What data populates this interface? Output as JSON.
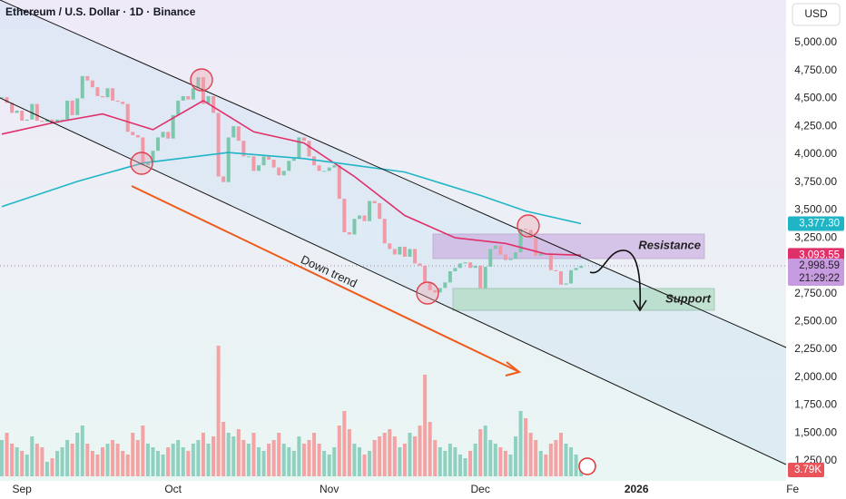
{
  "chart_data": {
    "type": "candlestick",
    "title": "Ethereum / U.S. Dollar · 1D · Binance",
    "currency": "USD",
    "up_color": "#7cc8ad",
    "down_color": "#f09aa8",
    "volume_up_color": "#8fd0c0",
    "volume_down_color": "#f3a3a3",
    "xlim": [
      -0.36,
      155.7
    ],
    "xticks": [
      {
        "value": 4,
        "label": "Sep"
      },
      {
        "value": 34,
        "label": "Oct"
      },
      {
        "value": 65,
        "label": "Nov"
      },
      {
        "value": 95,
        "label": "Dec"
      },
      {
        "value": 126,
        "label": "2026"
      },
      {
        "value": 157,
        "label": "Fe"
      }
    ],
    "ylim": [
      1071,
      5382
    ],
    "yticks": [
      {
        "value": 5000,
        "label": "5,000.00"
      },
      {
        "value": 4750,
        "label": "4,750.00"
      },
      {
        "value": 4500,
        "label": "4,500.00"
      },
      {
        "value": 4250,
        "label": "4,250.00"
      },
      {
        "value": 4000,
        "label": "4,000.00"
      },
      {
        "value": 3750,
        "label": "3,750.00"
      },
      {
        "value": 3500,
        "label": "3,500.00"
      },
      {
        "value": 3250,
        "label": "3,250.00"
      },
      {
        "value": 2750,
        "label": "2,750.00"
      },
      {
        "value": 2500,
        "label": "2,500.00"
      },
      {
        "value": 2250,
        "label": "2,250.00"
      },
      {
        "value": 2000,
        "label": "2,000.00"
      },
      {
        "value": 1750,
        "label": "1,750.00"
      },
      {
        "value": 1500,
        "label": "1,500.00"
      },
      {
        "value": 1250,
        "label": "1,250.00"
      }
    ],
    "x": [
      0,
      1,
      2,
      3,
      4,
      5,
      6,
      7,
      8,
      9,
      10,
      11,
      12,
      13,
      14,
      15,
      16,
      17,
      18,
      19,
      20,
      21,
      22,
      23,
      24,
      25,
      26,
      27,
      28,
      29,
      30,
      31,
      32,
      33,
      34,
      35,
      36,
      37,
      38,
      39,
      40,
      41,
      42,
      43,
      44,
      45,
      46,
      47,
      48,
      49,
      50,
      51,
      52,
      53,
      54,
      55,
      56,
      57,
      58,
      59,
      60,
      61,
      62,
      63,
      64,
      65,
      66,
      67,
      68,
      69,
      70,
      71,
      72,
      73,
      74,
      75,
      76,
      77,
      78,
      79,
      80,
      81,
      82,
      83,
      84,
      85,
      86,
      87,
      88,
      89,
      90,
      91,
      92,
      93,
      94,
      95,
      96,
      97,
      98,
      99,
      100,
      101,
      102,
      103,
      104,
      105,
      106,
      107,
      108,
      109,
      110,
      111,
      112,
      113,
      114,
      115
    ],
    "close": [
      4510,
      4460,
      4370,
      4390,
      4300,
      4310,
      4450,
      4300,
      4290,
      4310,
      4280,
      4310,
      4310,
      4480,
      4350,
      4500,
      4700,
      4660,
      4600,
      4520,
      4510,
      4590,
      4480,
      4470,
      4450,
      4200,
      4170,
      4150,
      3900,
      3930,
      4030,
      4150,
      4200,
      4140,
      4350,
      4480,
      4520,
      4490,
      4590,
      4690,
      4450,
      4520,
      4370,
      3800,
      3750,
      4150,
      4250,
      4120,
      3980,
      3980,
      3850,
      3900,
      3980,
      3950,
      3880,
      3810,
      3850,
      3940,
      3960,
      4150,
      4120,
      3980,
      3900,
      3850,
      3850,
      3880,
      3900,
      3600,
      3300,
      3280,
      3420,
      3450,
      3400,
      3580,
      3560,
      3420,
      3200,
      3150,
      3100,
      3170,
      3080,
      3150,
      3020,
      3000,
      2850,
      2780,
      2760,
      2800,
      2850,
      2950,
      2980,
      3020,
      3030,
      2980,
      3000,
      2800,
      2990,
      3150,
      3180,
      3100,
      3050,
      3060,
      3120,
      3330,
      3320,
      3250,
      3090,
      3110,
      3100,
      2960,
      2950,
      2830,
      2840,
      2960,
      2980,
      2998.59
    ],
    "last_price": {
      "value": 2998.59,
      "label": "2,998.59"
    },
    "countdown": "21:29:22",
    "volume_ylim": [
      0,
      40
    ],
    "volume": [
      10,
      12,
      9,
      8,
      7,
      6,
      11,
      9,
      8,
      4,
      5,
      7,
      8,
      10,
      9,
      12,
      14,
      9,
      7,
      6,
      8,
      9,
      10,
      9,
      7,
      6,
      12,
      10,
      14,
      9,
      8,
      7,
      6,
      8,
      9,
      10,
      8,
      7,
      9,
      10,
      12,
      9,
      11,
      36,
      15,
      12,
      11,
      13,
      10,
      9,
      12,
      8,
      7,
      9,
      10,
      12,
      9,
      8,
      7,
      11,
      9,
      10,
      12,
      9,
      7,
      6,
      8,
      14,
      18,
      13,
      9,
      8,
      6,
      7,
      10,
      11,
      12,
      13,
      11,
      8,
      9,
      12,
      11,
      14,
      28,
      15,
      10,
      8,
      7,
      9,
      8,
      6,
      5,
      7,
      9,
      13,
      14,
      10,
      9,
      8,
      7,
      6,
      11,
      18,
      16,
      12,
      10,
      7,
      6,
      9,
      10,
      12,
      9,
      8,
      6,
      3.79
    ],
    "last_volume": {
      "value": 3.79,
      "label": "3.79K"
    },
    "moving_averages": [
      {
        "color": "#e0306a",
        "x": [
          0,
          10,
          20,
          30,
          40,
          50,
          60,
          70,
          80,
          90,
          100,
          108,
          115
        ],
        "values": [
          4180,
          4280,
          4360,
          4220,
          4480,
          4200,
          4100,
          3800,
          3450,
          3250,
          3200,
          3105,
          3093.55
        ],
        "value_labels": [
          null,
          null,
          null,
          null,
          null,
          null,
          null,
          null,
          null,
          null,
          null,
          null,
          "3,093.55"
        ]
      },
      {
        "color": "#1fb5c6",
        "x": [
          0,
          15,
          28,
          45,
          60,
          80,
          95,
          104,
          115
        ],
        "values": [
          3530,
          3755,
          3920,
          4015,
          3960,
          3840,
          3630,
          3490,
          3377.3
        ],
        "value_labels": [
          null,
          null,
          null,
          null,
          null,
          null,
          null,
          null,
          "3,377.30"
        ]
      }
    ],
    "annotations": {
      "trend": "Down trend",
      "resistance": "Resistance",
      "support": "Support"
    }
  }
}
